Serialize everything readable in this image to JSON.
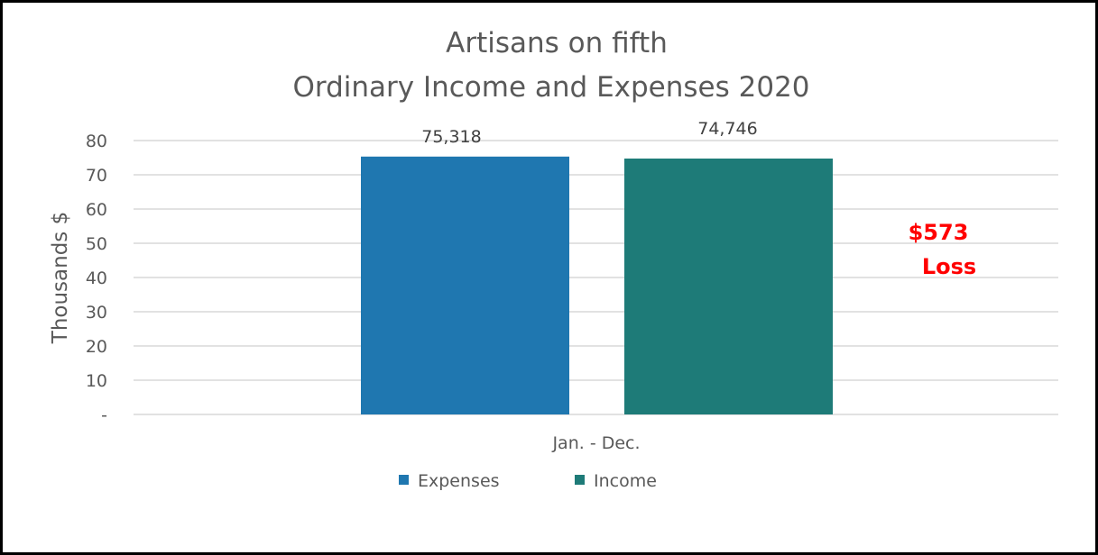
{
  "chart_data": {
    "type": "bar",
    "title": [
      "Artisans on fifth",
      "Ordinary Income and Expenses 2020"
    ],
    "ylabel": "Thousands $",
    "xlabel": "",
    "categories": [
      "Jan. - Dec."
    ],
    "ylim": [
      0,
      80
    ],
    "yticks": [
      0,
      10,
      20,
      30,
      40,
      50,
      60,
      70,
      80
    ],
    "ytick_labels": [
      "-",
      "10",
      "20",
      "30",
      "40",
      "50",
      "60",
      "70",
      "80"
    ],
    "grid": true,
    "legend_position": "bottom",
    "series": [
      {
        "name": "Expenses",
        "values": [
          75.318
        ],
        "label": "75,318",
        "color": "#1f77b0"
      },
      {
        "name": "Income",
        "values": [
          74.746
        ],
        "label": "74,746",
        "color": "#1e7b78"
      }
    ],
    "annotation": {
      "line1": "$573",
      "line2": "Loss",
      "color": "#ff0000"
    }
  }
}
